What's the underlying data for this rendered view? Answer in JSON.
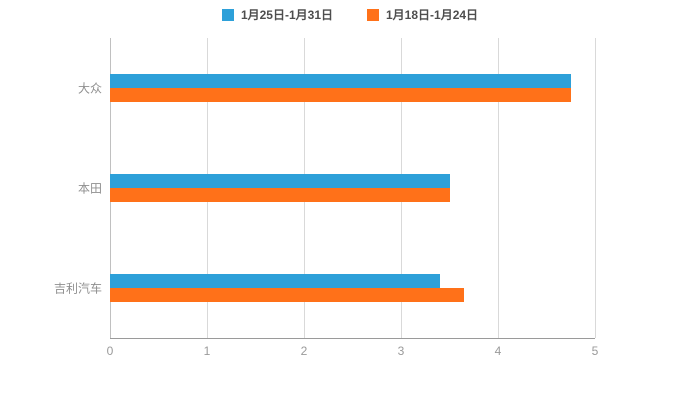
{
  "chart_data": {
    "type": "bar",
    "orientation": "horizontal",
    "title": "",
    "xlabel": "",
    "ylabel": "",
    "categories": [
      "大众",
      "本田",
      "吉利汽车"
    ],
    "series": [
      {
        "name": "1月25日-1月31日",
        "color": "#2DA0D9",
        "values": [
          4.75,
          3.5,
          3.4
        ]
      },
      {
        "name": "1月18日-1月24日",
        "color": "#FF7119",
        "values": [
          4.75,
          3.5,
          3.65
        ]
      }
    ],
    "xlim": [
      0,
      5
    ],
    "xticks": [
      "0",
      "1",
      "2",
      "3",
      "4",
      "5"
    ],
    "grid": true,
    "legend_position": "top"
  }
}
